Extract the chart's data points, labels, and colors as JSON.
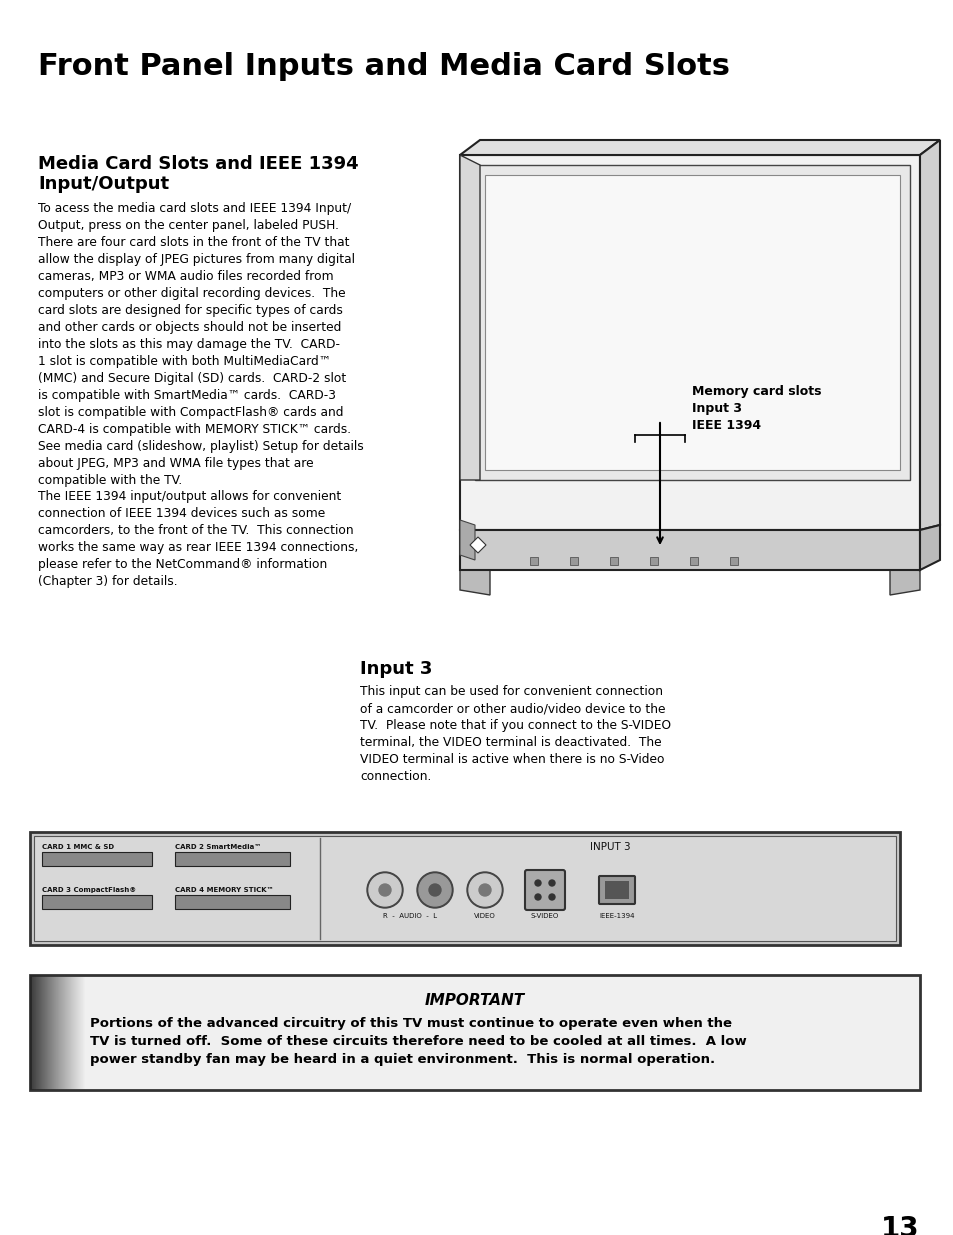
{
  "title": "Front Panel Inputs and Media Card Slots",
  "page_number": "13",
  "bg_color": "#ffffff",
  "section1_heading_line1": "Media Card Slots and IEEE 1394",
  "section1_heading_line2": "Input/Output",
  "section1_body": "To acess the media card slots and IEEE 1394 Input/\nOutput, press on the center panel, labeled PUSH.\nThere are four card slots in the front of the TV that\nallow the display of JPEG pictures from many digital\ncameras, MP3 or WMA audio files recorded from\ncomputers or other digital recording devices.  The\ncard slots are designed for specific types of cards\nand other cards or objects should not be inserted\ninto the slots as this may damage the TV.  CARD-\n1 slot is compatible with both MultiMediaCard™\n(MMC) and Secure Digital (SD) cards.  CARD-2 slot\nis compatible with SmartMedia™ cards.  CARD-3\nslot is compatible with CompactFlash® cards and\nCARD-4 is compatible with MEMORY STICK™ cards.\nSee media card (slideshow, playlist) Setup for details\nabout JPEG, MP3 and WMA file types that are\ncompatible with the TV.",
  "section1_body2": "The IEEE 1394 input/output allows for convenient\nconnection of IEEE 1394 devices such as some\ncamcorders, to the front of the TV.  This connection\nworks the same way as rear IEEE 1394 connections,\nplease refer to the NetCommand® information\n(Chapter 3) for details.",
  "tv_label": "Memory card slots\nInput 3\nIEEE 1394",
  "section2_heading": "Input 3",
  "section2_body": "This input can be used for convenient connection\nof a camcorder or other audio/video device to the\nTV.  Please note that if you connect to the S-VIDEO\nterminal, the VIDEO terminal is deactivated.  The\nVIDEO terminal is active when there is no S-Video\nconnection.",
  "important_title": "IMPORTANT",
  "important_body": "Portions of the advanced circuitry of this TV must continue to operate even when the\nTV is turned off.  Some of these circuits therefore need to be cooled at all times.  A low\npower standby fan may be heard in a quiet environment.  This is normal operation.",
  "panel_label_card1": "CARD 1 MMC & SD",
  "panel_label_card2": "CARD 2 SmartMedia™",
  "panel_label_card3": "CARD 3 CompactFlash®",
  "panel_label_card4": "CARD 4 MEMORY STICK™",
  "panel_label_input3": "INPUT 3",
  "panel_label_audio": "R  -  AUDIO  -  L",
  "panel_label_video": "VIDEO",
  "panel_label_svideo": "S-VIDEO",
  "panel_label_ieee": "IEEE-1394"
}
